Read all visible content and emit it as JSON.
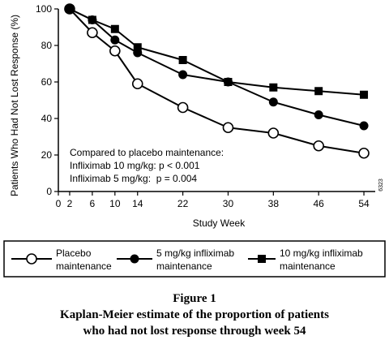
{
  "chart_data": {
    "type": "line",
    "ylabel": "Patients Who Had Not Lost Response (%)",
    "xlabel": "Study Week",
    "x_ticks": [
      0,
      2,
      6,
      10,
      14,
      22,
      30,
      38,
      46,
      54
    ],
    "y_ticks": [
      0,
      20,
      40,
      60,
      80,
      100
    ],
    "xlim": [
      0,
      56
    ],
    "ylim": [
      0,
      100
    ],
    "grid": false,
    "series": [
      {
        "name": "Placebo maintenance",
        "marker": "open-circle",
        "x": [
          2,
          6,
          10,
          14,
          22,
          30,
          38,
          46,
          54
        ],
        "y": [
          100,
          87,
          77,
          59,
          46,
          35,
          32,
          25,
          21
        ]
      },
      {
        "name": "5 mg/kg infliximab maintenance",
        "marker": "filled-circle",
        "x": [
          2,
          6,
          10,
          14,
          22,
          30,
          38,
          46,
          54
        ],
        "y": [
          100,
          94,
          83,
          76,
          64,
          60,
          49,
          42,
          36
        ]
      },
      {
        "name": "10 mg/kg infliximab maintenance",
        "marker": "filled-square",
        "x": [
          2,
          6,
          10,
          14,
          22,
          30,
          38,
          46,
          54
        ],
        "y": [
          100,
          94,
          89,
          79,
          72,
          60,
          57,
          55,
          53
        ]
      }
    ],
    "annotations": [
      "Compared to placebo maintenance:",
      "Infliximab 10 mg/kg: p < 0.001",
      "Infliximab 5 mg/kg:  p = 0.004"
    ],
    "side_code": "6323"
  },
  "legend": [
    {
      "line1": "Placebo",
      "line2": "maintenance"
    },
    {
      "line1": "5 mg/kg infliximab",
      "line2": "maintenance"
    },
    {
      "line1": "10 mg/kg infliximab",
      "line2": "maintenance"
    }
  ],
  "caption": {
    "figure": "Figure 1",
    "line1": "Kaplan-Meier estimate of the proportion of patients",
    "line2": "who had not lost response through week 54"
  }
}
